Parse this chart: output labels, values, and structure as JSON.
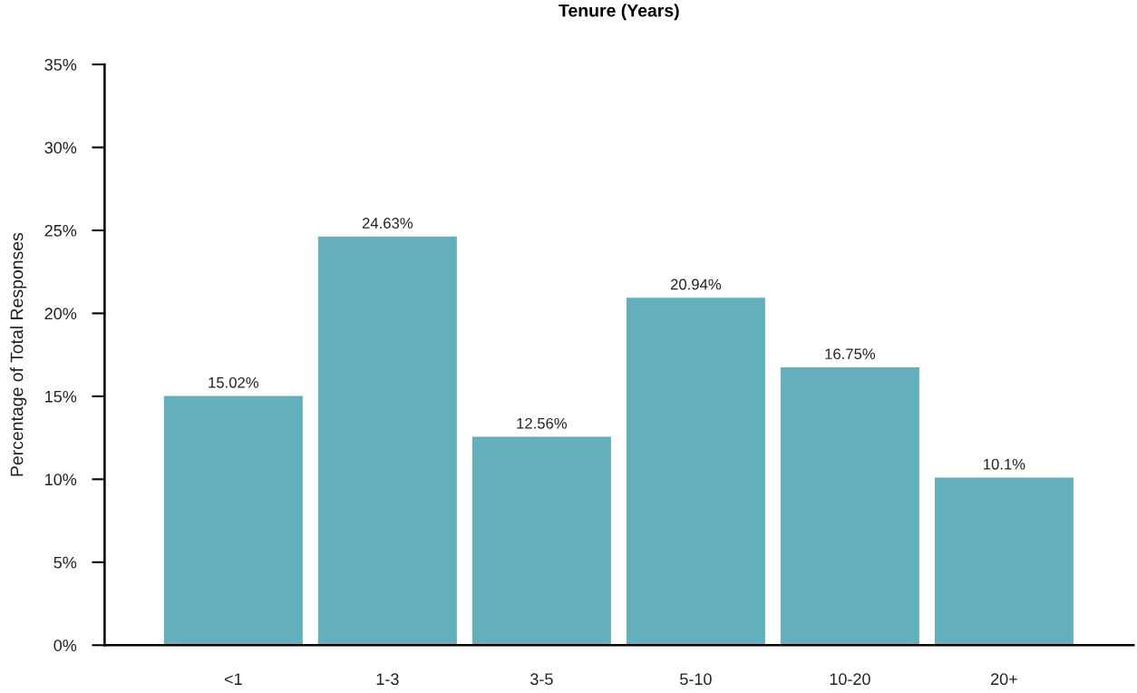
{
  "chart_data": {
    "type": "bar",
    "title": "Tenure (Years)",
    "ylabel": "Percentage of Total Responses",
    "categories": [
      "<1",
      "1-3",
      "3-5",
      "5-10",
      "10-20",
      "20+"
    ],
    "values": [
      15.02,
      24.63,
      12.56,
      20.94,
      16.75,
      10.1
    ],
    "value_labels": [
      "15.02%",
      "24.63%",
      "12.56%",
      "20.94%",
      "16.75%",
      "10.1%"
    ],
    "color": "#63afbc",
    "ylim": [
      0,
      35
    ],
    "yticks": [
      {
        "value": 0,
        "label": "0%"
      },
      {
        "value": 5,
        "label": "5%"
      },
      {
        "value": 10,
        "label": "10%"
      },
      {
        "value": 15,
        "label": "15%"
      },
      {
        "value": 20,
        "label": "20%"
      },
      {
        "value": 25,
        "label": "25%"
      },
      {
        "value": 30,
        "label": "30%"
      },
      {
        "value": 35,
        "label": "35%"
      }
    ],
    "grid": false,
    "legend": false
  }
}
